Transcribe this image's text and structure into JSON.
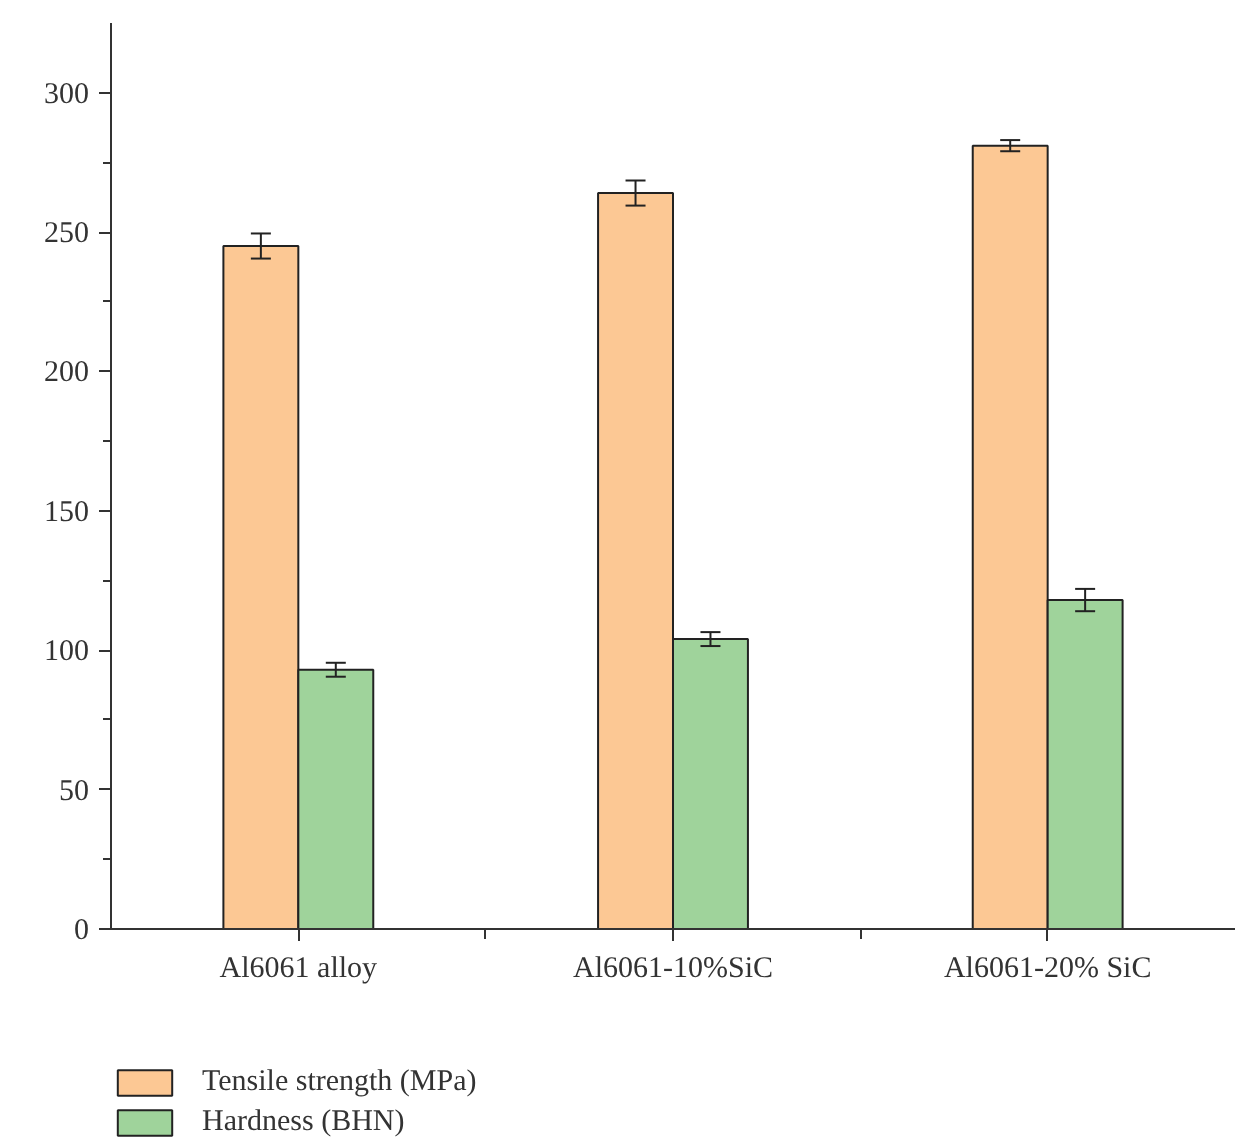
{
  "chart_data": {
    "type": "bar",
    "categories": [
      "Al6061 alloy",
      "Al6061-10%SiC",
      "Al6061-20% SiC"
    ],
    "series": [
      {
        "name": "Tensile strength (MPa)",
        "color": "#fcc894",
        "values": [
          245,
          264,
          281
        ],
        "errors": [
          4.5,
          4.5,
          2
        ]
      },
      {
        "name": "Hardness (BHN)",
        "color": "#9fd39b",
        "values": [
          93,
          104,
          118
        ],
        "errors": [
          2.5,
          2.5,
          4
        ]
      }
    ],
    "ylim": [
      0,
      325
    ],
    "yticks": [
      0,
      {
        "value": 25,
        "label": null
      },
      50,
      {
        "value": 75,
        "label": null
      },
      100,
      {
        "value": 125,
        "label": null
      },
      150,
      {
        "value": 175,
        "label": null
      },
      200,
      {
        "value": 225,
        "label": null
      },
      250,
      {
        "value": 275,
        "label": null
      },
      300
    ],
    "grid": false,
    "legend": "bottom left"
  }
}
